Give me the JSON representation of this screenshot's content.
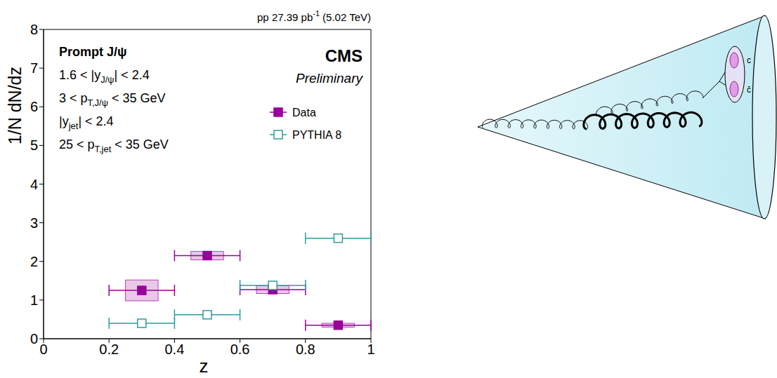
{
  "chart_data": {
    "type": "scatter",
    "title": [
      {
        "t": "pp 27.39 pb"
      },
      {
        "t": "-1",
        "sup": true
      },
      {
        "t": " (5.02 TeV)"
      }
    ],
    "x_label": "z",
    "y_label": "1/N dN/dz",
    "experiment_label": "CMS",
    "status_label": "Preliminary",
    "annotations": [
      [
        {
          "t": "Prompt J/ψ"
        }
      ],
      [
        {
          "t": "1.6 < |y"
        },
        {
          "t": "J/ψ",
          "sub": true
        },
        {
          "t": "| < 2.4"
        }
      ],
      [
        {
          "t": "3 < p"
        },
        {
          "t": "T,J/ψ",
          "sub": true
        },
        {
          "t": " < 35 GeV"
        }
      ],
      [
        {
          "t": "|y"
        },
        {
          "t": "jet",
          "sub": true
        },
        {
          "t": "| < 2.4"
        }
      ],
      [
        {
          "t": "25 < p"
        },
        {
          "t": "T,jet",
          "sub": true
        },
        {
          "t": " < 35 GeV"
        }
      ]
    ],
    "xlim": [
      0,
      1
    ],
    "xticks": [
      0,
      0.2,
      0.4,
      0.6,
      0.8,
      1
    ],
    "ylim": [
      0,
      8
    ],
    "yticks": [
      0,
      1,
      2,
      3,
      4,
      5,
      6,
      7,
      8
    ],
    "legend": "top-right",
    "series": [
      {
        "name": "Data",
        "color": "#990099",
        "marker": "square",
        "x": [
          0.3,
          0.5,
          0.7,
          0.9
        ],
        "values": [
          1.25,
          2.15,
          1.27,
          0.35
        ],
        "x_errors": [
          0.1,
          0.1,
          0.1,
          0.1
        ],
        "sys_errors": [
          0.27,
          0.11,
          0.1,
          0.05
        ]
      },
      {
        "name": "PYTHIA 8",
        "color": "#2e9c9c",
        "marker": "open_square",
        "x": [
          0.3,
          0.5,
          0.7,
          0.9
        ],
        "values": [
          0.4,
          0.62,
          1.38,
          2.6
        ],
        "x_errors": [
          0.1,
          0.1,
          0.1,
          0.1
        ]
      }
    ]
  },
  "diagram": {
    "labels": [
      "c",
      "c̄"
    ]
  }
}
